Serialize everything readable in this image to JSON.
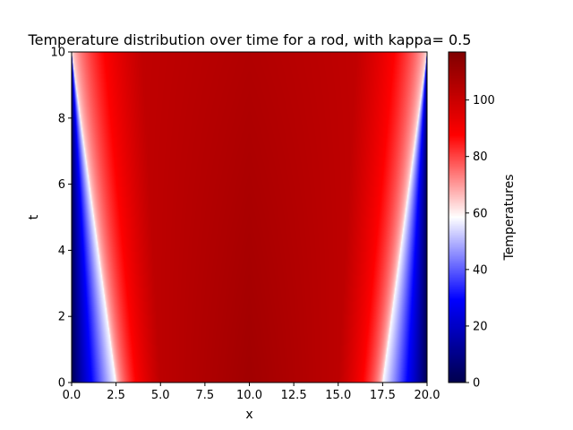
{
  "chart_data": {
    "type": "heatmap",
    "title": "Temperature distribution over time for a rod, with kappa= 0.5",
    "xlabel": "x",
    "ylabel": "t",
    "xlim": [
      0.0,
      20.0
    ],
    "ylim": [
      0,
      10
    ],
    "x_ticks": [
      "0.0",
      "2.5",
      "5.0",
      "7.5",
      "10.0",
      "12.5",
      "15.0",
      "17.5",
      "20.0"
    ],
    "y_ticks": [
      "0",
      "2",
      "4",
      "6",
      "8",
      "10"
    ],
    "colormap": "seismic",
    "colorbar": {
      "label": "Temperatures",
      "range": [
        0,
        117
      ],
      "ticks": [
        "0",
        "20",
        "40",
        "60",
        "80",
        "100"
      ]
    },
    "field": {
      "boundary_value": 0,
      "interior_value": 100,
      "peak_value": 117,
      "white_contour_x_at_t0": 2.5,
      "white_contour_x_at_t10": 0.0
    }
  }
}
